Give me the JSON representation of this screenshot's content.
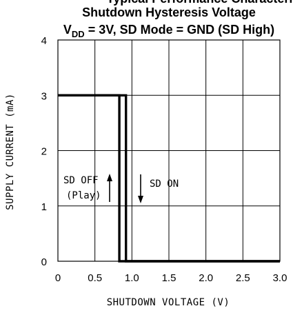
{
  "chart_data": {
    "type": "line",
    "title_cut": "Typical Performance Characteristics",
    "title": "Shutdown Hysteresis Voltage",
    "subtitle_prefix": "V",
    "subtitle_sub": "DD",
    "subtitle_rest": " = 3V, SD Mode = GND (SD High)",
    "xlabel": "SHUTDOWN VOLTAGE (V)",
    "ylabel": "SUPPLY CURRENT (mA)",
    "xlim": [
      0,
      3.0
    ],
    "ylim": [
      0,
      4
    ],
    "xticks": [
      "0",
      "0.5",
      "1.0",
      "1.5",
      "2.0",
      "2.5",
      "3.0"
    ],
    "yticks": [
      "0",
      "1",
      "2",
      "3",
      "4"
    ],
    "grid": true,
    "series": [
      {
        "x": [
          0,
          0.92,
          0.92,
          3.0
        ],
        "y": [
          3,
          3,
          0,
          0
        ]
      },
      {
        "x": [
          0,
          0.83,
          0.83,
          3.0
        ],
        "y": [
          3,
          3,
          0,
          0
        ]
      }
    ],
    "annotations": {
      "sd_off_line1": "SD OFF",
      "sd_off_line2": "(Play)",
      "sd_on": "SD ON"
    },
    "colors": {
      "line": "#000000",
      "grid": "#000000"
    }
  }
}
